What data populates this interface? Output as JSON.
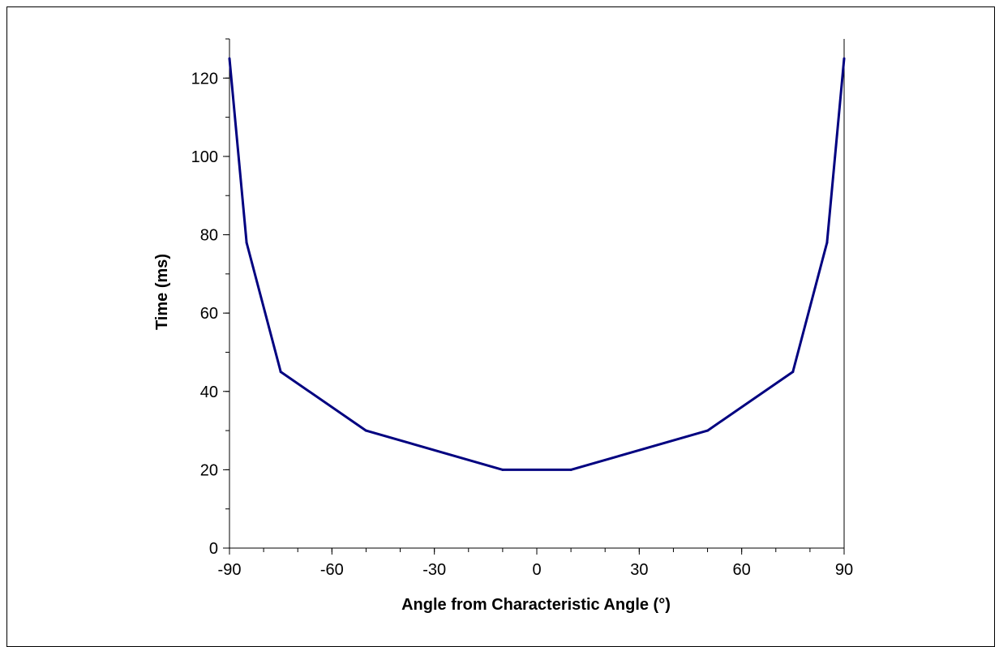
{
  "chart_data": {
    "type": "line",
    "title": "",
    "xlabel": "Angle from Characteristic Angle (°)",
    "ylabel": "Time (ms)",
    "xlim": [
      -90,
      90
    ],
    "ylim": [
      0,
      130
    ],
    "xticks": [
      -90,
      -60,
      -30,
      0,
      30,
      60,
      90
    ],
    "yticks": [
      0,
      20,
      40,
      60,
      80,
      100,
      120
    ],
    "grid": false,
    "line_color": "#000080",
    "series": [
      {
        "x": [
          -90,
          -85,
          -75,
          -50,
          -10,
          10,
          50,
          75,
          85,
          90
        ],
        "y": [
          125,
          78,
          45,
          30,
          20,
          20,
          30,
          45,
          78,
          125
        ]
      }
    ]
  }
}
